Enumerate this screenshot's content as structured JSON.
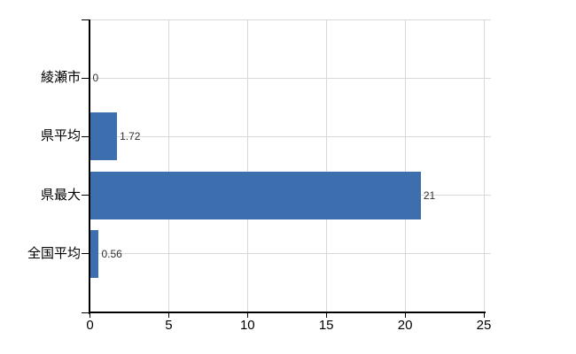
{
  "chart_data": {
    "type": "bar",
    "orientation": "horizontal",
    "title": "",
    "xlabel": "",
    "ylabel": "",
    "categories": [
      "綾瀬市",
      "県平均",
      "県最大",
      "全国平均"
    ],
    "values": [
      0,
      1.72,
      21,
      0.56
    ],
    "value_labels": [
      "0",
      "1.72",
      "21",
      "0.56"
    ],
    "x_ticks": [
      0,
      5,
      10,
      15,
      20,
      25
    ],
    "x_tick_labels": [
      "0",
      "5",
      "10",
      "15",
      "20",
      "25"
    ],
    "xlim": [
      0,
      25
    ],
    "grid": true,
    "legend": false,
    "colors": {
      "bar": "#3d6fae",
      "grid": "#d9d9d9",
      "axis": "#000000",
      "value_label": "#303030",
      "tick_label": "#000000"
    }
  }
}
